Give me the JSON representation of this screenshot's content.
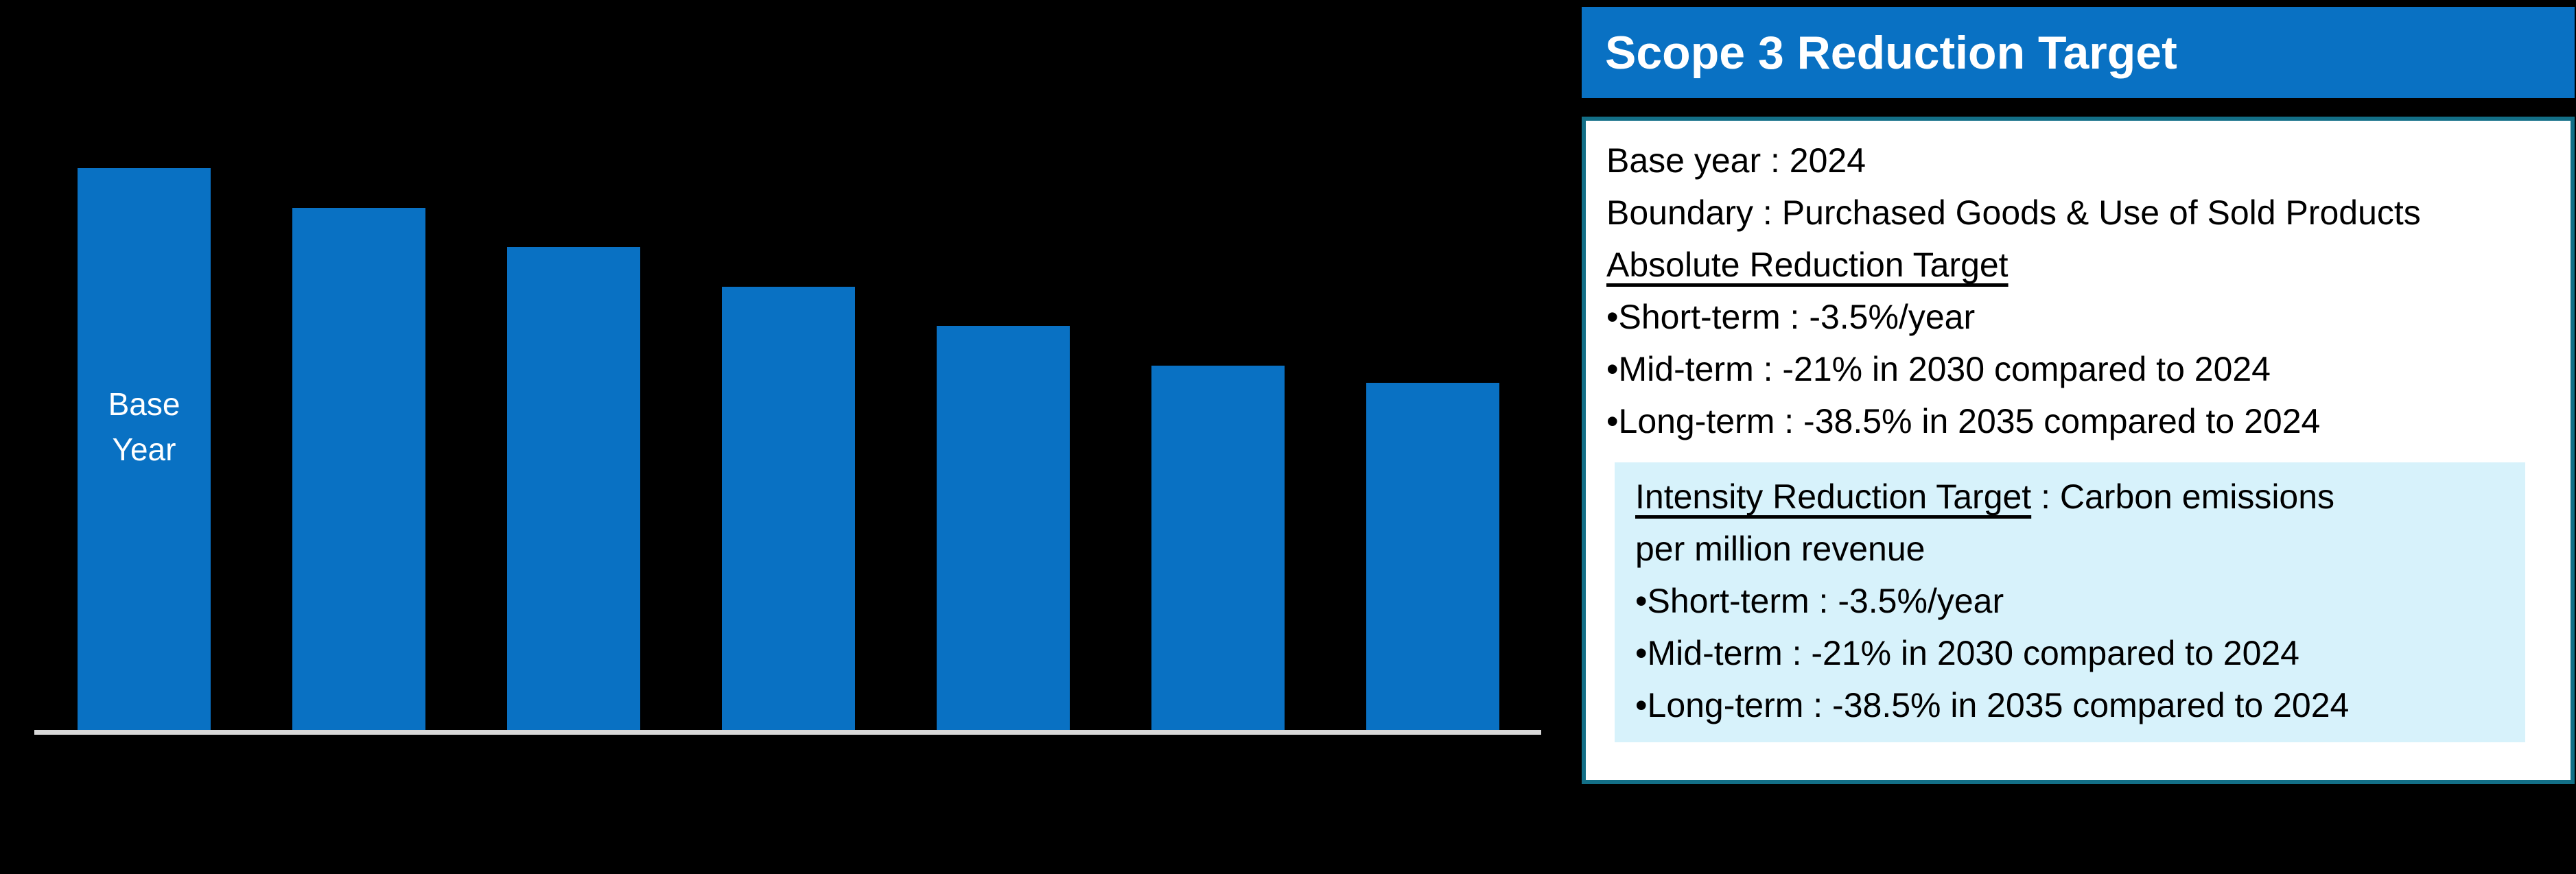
{
  "chart_data": {
    "type": "bar",
    "categories": [
      "Base Year",
      "",
      "",
      "",
      "",
      "",
      ""
    ],
    "values": [
      100,
      93,
      86,
      79,
      72,
      65,
      62
    ],
    "title": "",
    "xlabel": "",
    "ylabel": "",
    "ylim": [
      0,
      105
    ],
    "grid": false,
    "legend": false,
    "in_bar_label": "Base Year",
    "bar_color": "#0971c3",
    "axis_line_color": "#d9d9d9"
  },
  "panel": {
    "title": "Scope 3 Reduction Target",
    "base_year_line": "Base year : 2024",
    "boundary_line": "Boundary : Purchased Goods & Use of Sold Products",
    "absolute": {
      "heading": "Absolute Reduction Target",
      "bullets": [
        "•Short-term : -3.5%/year",
        "•Mid-term : -21% in 2030 compared to 2024",
        "•Long-term : -38.5% in 2035 compared to 2024"
      ]
    },
    "intensity": {
      "heading": "Intensity Reduction Target",
      "heading_rest": " : Carbon emissions",
      "line2": "per million revenue",
      "bullets": [
        "•Short-term : -3.5%/year",
        "•Mid-term : -21% in 2030 compared to 2024",
        "•Long-term : -38.5% in 2035 compared to 2024"
      ]
    }
  },
  "colors": {
    "background": "#000000",
    "bar_blue": "#0971c3",
    "header_blue": "#0971c3",
    "header_text": "#ffffff",
    "border_teal": "#136f87",
    "highlight_bg": "#d7f2fb",
    "axis_gray": "#d9d9d9",
    "body_text": "#000000"
  }
}
